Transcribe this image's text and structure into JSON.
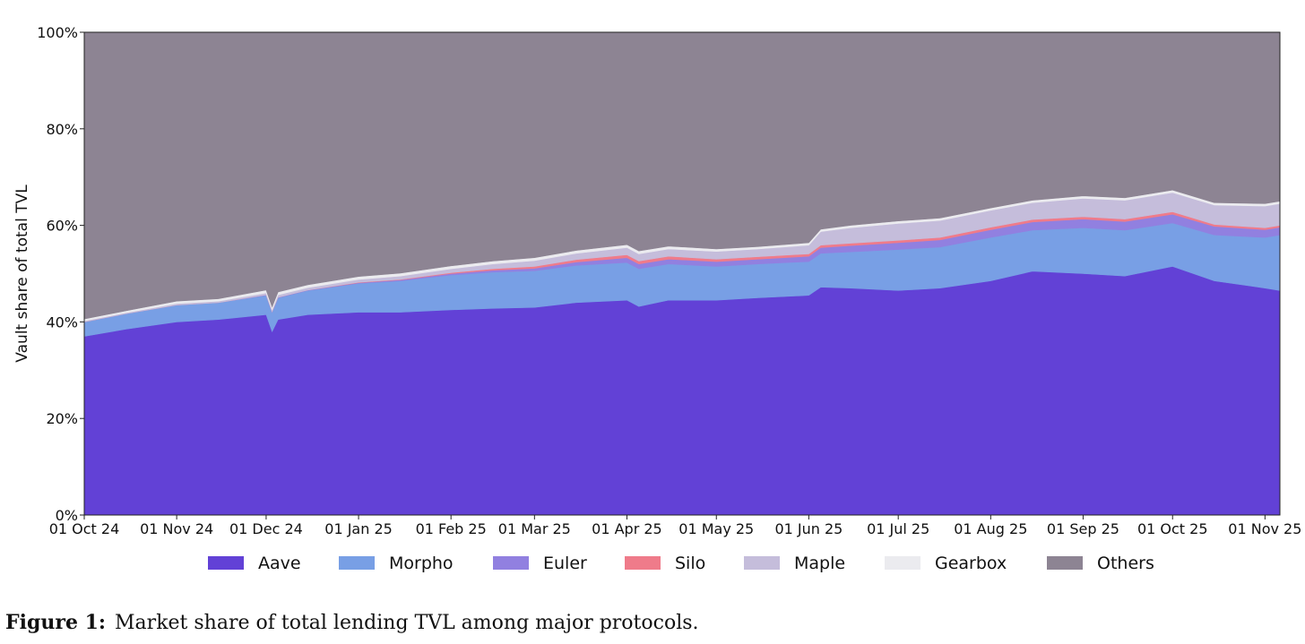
{
  "chart_data": {
    "type": "area",
    "stacked": true,
    "title": "",
    "xlabel": "",
    "ylabel": "Vault share of total TVL",
    "ylim": [
      0,
      100
    ],
    "y_ticks": [
      "0%",
      "20%",
      "40%",
      "60%",
      "80%",
      "100%"
    ],
    "x_ticks": [
      "01 Oct 24",
      "01 Nov 24",
      "01 Dec 24",
      "01 Jan 25",
      "01 Feb 25",
      "01 Mar 25",
      "01 Apr 25",
      "01 May 25",
      "01 Jun 25",
      "01 Jul 25",
      "01 Aug 25",
      "01 Sep 25",
      "01 Oct 25",
      "01 Nov 25"
    ],
    "x_range": [
      "2024-10-01",
      "2025-11-06"
    ],
    "legend_position": "bottom",
    "x": [
      "2024-10-01",
      "2024-10-15",
      "2024-11-01",
      "2024-11-15",
      "2024-12-01",
      "2024-12-03",
      "2024-12-05",
      "2024-12-15",
      "2025-01-01",
      "2025-01-15",
      "2025-02-01",
      "2025-02-15",
      "2025-03-01",
      "2025-03-15",
      "2025-04-01",
      "2025-04-05",
      "2025-04-15",
      "2025-05-01",
      "2025-05-15",
      "2025-06-01",
      "2025-06-05",
      "2025-06-15",
      "2025-07-01",
      "2025-07-15",
      "2025-08-01",
      "2025-08-15",
      "2025-09-01",
      "2025-09-15",
      "2025-10-01",
      "2025-10-15",
      "2025-11-01",
      "2025-11-06"
    ],
    "series": [
      {
        "name": "Aave",
        "color": "#6241d6",
        "values": [
          37.0,
          38.5,
          40.0,
          40.5,
          41.5,
          38.0,
          40.5,
          41.5,
          42.0,
          42.0,
          42.5,
          42.8,
          43.0,
          44.0,
          44.5,
          43.2,
          44.5,
          44.5,
          45.0,
          45.5,
          47.2,
          47.0,
          46.5,
          47.0,
          48.5,
          50.5,
          50.0,
          49.5,
          51.5,
          48.5,
          47.0,
          46.5
        ]
      },
      {
        "name": "Morpho",
        "color": "#789fe5",
        "values": [
          3.0,
          3.2,
          3.5,
          3.5,
          4.0,
          4.0,
          4.5,
          5.0,
          6.0,
          6.5,
          7.2,
          7.5,
          7.6,
          7.7,
          7.8,
          7.8,
          7.5,
          7.0,
          7.0,
          7.0,
          7.0,
          7.5,
          8.5,
          8.5,
          9.0,
          8.5,
          9.5,
          9.5,
          9.0,
          9.5,
          10.5,
          11.5
        ]
      },
      {
        "name": "Euler",
        "color": "#9180e0",
        "values": [
          0.0,
          0.0,
          0.0,
          0.0,
          0.1,
          0.1,
          0.1,
          0.1,
          0.1,
          0.2,
          0.3,
          0.4,
          0.5,
          0.7,
          1.0,
          1.0,
          1.0,
          1.0,
          1.0,
          1.1,
          1.2,
          1.3,
          1.4,
          1.5,
          1.6,
          1.7,
          1.8,
          1.8,
          1.8,
          1.8,
          1.6,
          1.6
        ]
      },
      {
        "name": "Silo",
        "color": "#ef7b8a",
        "values": [
          0.0,
          0.0,
          0.0,
          0.0,
          0.0,
          0.0,
          0.0,
          0.0,
          0.1,
          0.1,
          0.2,
          0.3,
          0.4,
          0.5,
          0.6,
          0.6,
          0.6,
          0.5,
          0.5,
          0.5,
          0.5,
          0.5,
          0.5,
          0.5,
          0.5,
          0.5,
          0.5,
          0.5,
          0.5,
          0.4,
          0.4,
          0.4
        ]
      },
      {
        "name": "Maple",
        "color": "#c5bddb",
        "values": [
          0.2,
          0.2,
          0.3,
          0.3,
          0.4,
          0.4,
          0.5,
          0.5,
          0.6,
          0.7,
          0.8,
          1.0,
          1.2,
          1.3,
          1.5,
          1.5,
          1.5,
          1.6,
          1.6,
          1.8,
          2.8,
          3.2,
          3.5,
          3.5,
          3.5,
          3.5,
          3.8,
          3.9,
          4.0,
          4.0,
          4.5,
          4.5
        ]
      },
      {
        "name": "Gearbox",
        "color": "#ebebef",
        "values": [
          0.4,
          0.4,
          0.5,
          0.5,
          0.6,
          0.6,
          0.6,
          0.6,
          0.6,
          0.6,
          0.6,
          0.6,
          0.6,
          0.6,
          0.6,
          0.6,
          0.6,
          0.5,
          0.5,
          0.5,
          0.5,
          0.5,
          0.5,
          0.5,
          0.5,
          0.5,
          0.5,
          0.5,
          0.5,
          0.5,
          0.5,
          0.5
        ]
      },
      {
        "name": "Others",
        "color": "#8d8493",
        "values": [
          59.4,
          57.7,
          55.7,
          55.2,
          53.4,
          56.9,
          53.8,
          52.3,
          50.6,
          49.9,
          48.4,
          47.4,
          46.7,
          45.2,
          44.0,
          45.3,
          44.3,
          44.9,
          44.4,
          43.6,
          40.8,
          40.0,
          39.1,
          38.5,
          36.4,
          34.8,
          33.9,
          34.3,
          32.7,
          35.3,
          35.5,
          35.0
        ]
      }
    ]
  },
  "caption": {
    "label": "Figure 1:",
    "text": "Market share of total lending TVL among major protocols."
  }
}
